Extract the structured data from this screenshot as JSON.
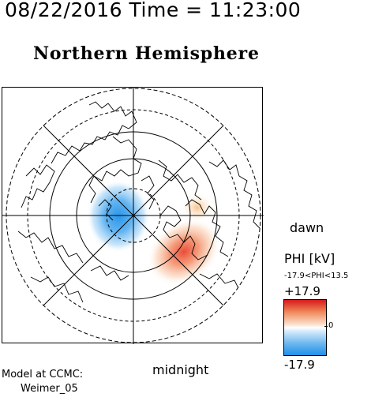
{
  "timestamp": "08/22/2016 Time = 11:23:00",
  "title": "Northern Hemisphere",
  "labels": {
    "dawn": "dawn",
    "midnight": "midnight"
  },
  "legend": {
    "title": "PHI [kV]",
    "range": "-17.9<PHI<13.5",
    "max": "+17.9",
    "zero": "0",
    "min": "-17.9",
    "colors": {
      "positive": "#d7191c",
      "neutral": "#ffffff",
      "negative": "#1e90e8"
    }
  },
  "footer": {
    "line1": "Model at CCMC:",
    "line2": "Weimer_05"
  }
}
